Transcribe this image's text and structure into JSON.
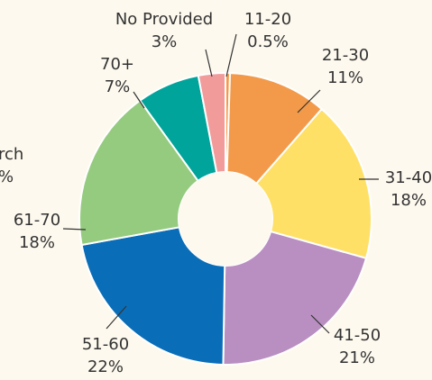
{
  "chart_data": {
    "type": "donut",
    "categories": [
      "11-20",
      "21-30",
      "31-40",
      "41-50",
      "51-60",
      "61-70",
      "70+",
      "No Provided"
    ],
    "values": [
      0.5,
      11,
      18,
      21,
      22,
      18,
      7,
      3
    ],
    "value_labels": [
      "0.5%",
      "11%",
      "18%",
      "21%",
      "22%",
      "18%",
      "7%",
      "3%"
    ],
    "colors": [
      "#f39a4a",
      "#f39a4a",
      "#ffe066",
      "#b98fc2",
      "#0a6db8",
      "#95cb7f",
      "#00a49a",
      "#f29b9b"
    ],
    "annotations": [
      "rch",
      "%"
    ]
  }
}
